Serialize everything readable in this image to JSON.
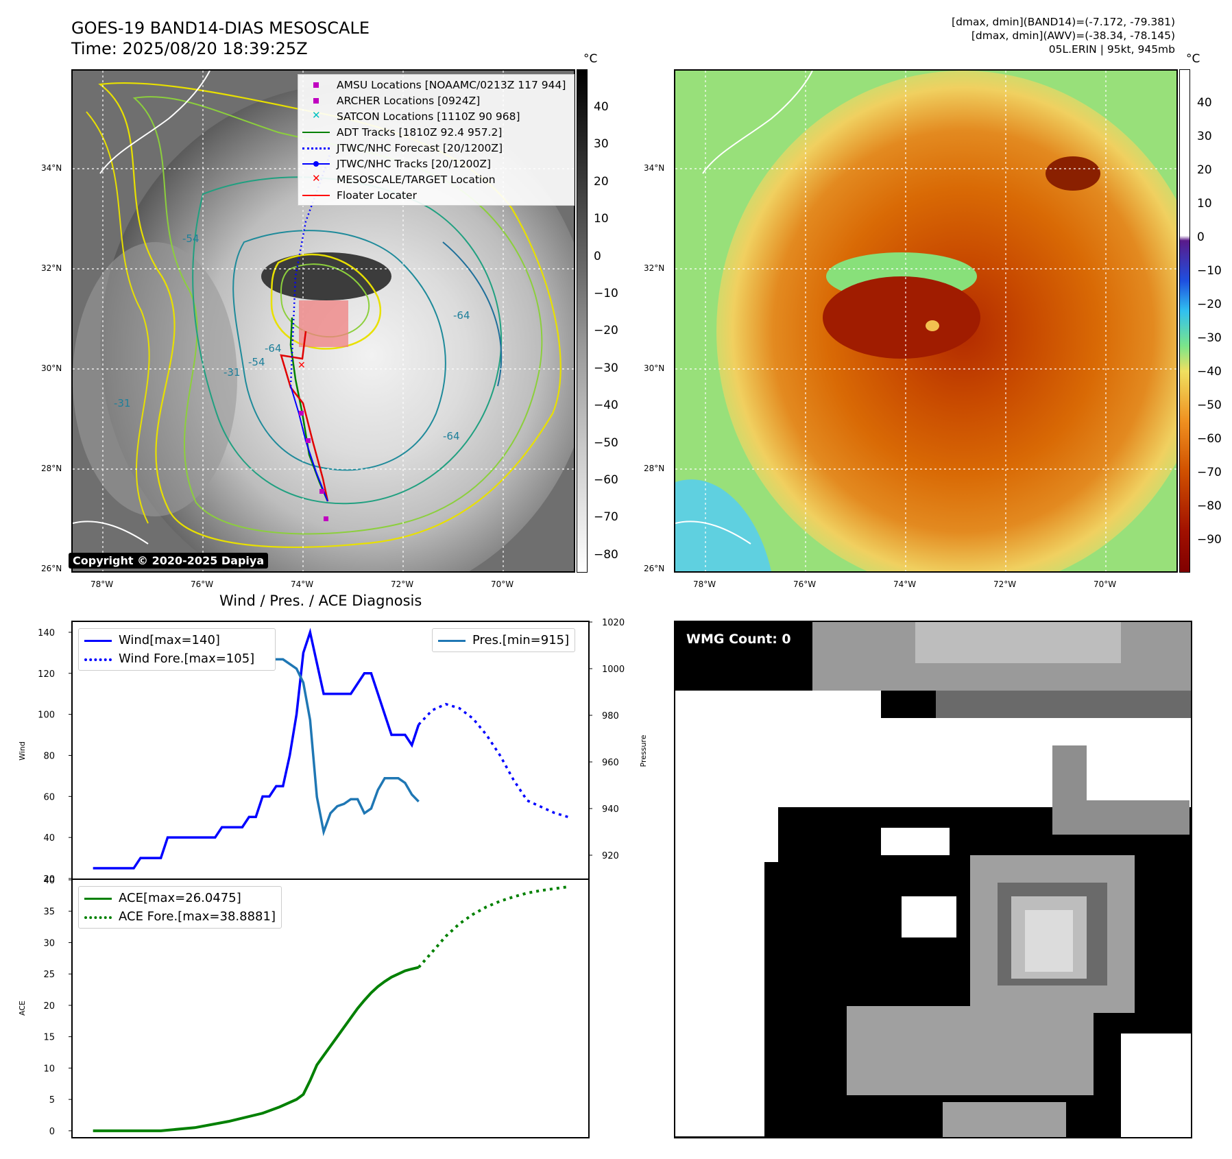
{
  "header": {
    "title_line1": "GOES-19 BAND14-DIAS MESOSCALE",
    "title_line2": "Time: 2025/08/20 18:39:25Z",
    "stats_line1": "[dmax, dmin](BAND14)=(-7.172, -79.381)",
    "stats_line2": "[dmax, dmin](AWV)=(-38.34, -78.145)",
    "stats_line3": "05L.ERIN | 95kt, 945mb"
  },
  "map_axes": {
    "lon_labels": [
      "78°W",
      "76°W",
      "74°W",
      "72°W",
      "70°W"
    ],
    "lat_labels": [
      "34°N",
      "32°N",
      "30°N",
      "28°N",
      "26°N"
    ]
  },
  "colorbar_left": {
    "unit": "°C",
    "ticks": [
      "40",
      "30",
      "20",
      "10",
      "0",
      "−10",
      "−20",
      "−30",
      "−40",
      "−50",
      "−60",
      "−70",
      "−80"
    ]
  },
  "colorbar_right": {
    "unit": "°C",
    "ticks": [
      "40",
      "30",
      "20",
      "10",
      "0",
      "−10",
      "−20",
      "−30",
      "−40",
      "−50",
      "−60",
      "−70",
      "−80",
      "−90"
    ]
  },
  "contour_labels": [
    "-64",
    "-54",
    "-31",
    "-64",
    "-64",
    "-54",
    "-31"
  ],
  "legend": [
    {
      "label": "AMSU Locations [NOAAMC/0213Z 117 944]",
      "symbol": "square",
      "color": "#c000c0"
    },
    {
      "label": "ARCHER Locations [0924Z]",
      "symbol": "square",
      "color": "#c000c0"
    },
    {
      "label": "SATCON Locations [1110Z 90 968]",
      "symbol": "x",
      "color": "#00c0c0"
    },
    {
      "label": "ADT Tracks [1810Z 92.4 957.2]",
      "symbol": "line",
      "color": "#008000"
    },
    {
      "label": "JTWC/NHC Forecast [20/1200Z]",
      "symbol": "dotted",
      "color": "#0000ff"
    },
    {
      "label": "JTWC/NHC Tracks [20/1200Z]",
      "symbol": "line-dot",
      "color": "#0000ff"
    },
    {
      "label": "MESOSCALE/TARGET Location",
      "symbol": "x",
      "color": "#ff0000"
    },
    {
      "label": "Floater Locater",
      "symbol": "line",
      "color": "#ff0000"
    }
  ],
  "copyright": "Copyright © 2020-2025 Dapiya",
  "wmg": {
    "label": "WMG Count: 0"
  },
  "chart_data": [
    {
      "type": "line",
      "title": "Wind / Pres. / ACE Diagnosis",
      "ylabel": "Wind",
      "ylabel_right": "Pressure",
      "ylim": [
        20,
        145
      ],
      "ylim_right": [
        910,
        1020
      ],
      "yticks": [
        20,
        40,
        60,
        80,
        100,
        120,
        140
      ],
      "yticks_right": [
        920,
        940,
        960,
        980,
        1000,
        1020
      ],
      "legend_left": [
        "Wind[max=140]",
        "Wind Fore.[max=105]"
      ],
      "legend_right": [
        "Pres.[min=915]"
      ],
      "series": [
        {
          "name": "Wind[max=140]",
          "color": "#0000ff",
          "style": "solid",
          "x": [
            0,
            2,
            4,
            6,
            8,
            10,
            12,
            14,
            16,
            18,
            20,
            22,
            24,
            26,
            28,
            30,
            32,
            34,
            36,
            38,
            40,
            42,
            44,
            46,
            48,
            50,
            52,
            54,
            56,
            58,
            60,
            62,
            64,
            66,
            68,
            70,
            72,
            74,
            76,
            78,
            80,
            82,
            84,
            86,
            88,
            90,
            92,
            94,
            96
          ],
          "values": [
            25,
            25,
            25,
            25,
            25,
            25,
            25,
            30,
            30,
            30,
            30,
            40,
            40,
            40,
            40,
            40,
            40,
            40,
            40,
            45,
            45,
            45,
            45,
            50,
            50,
            60,
            60,
            65,
            65,
            80,
            100,
            130,
            140,
            125,
            110,
            110,
            110,
            110,
            110,
            115,
            120,
            120,
            110,
            100,
            90,
            90,
            90,
            85,
            95
          ]
        },
        {
          "name": "Wind Fore.[max=105]",
          "color": "#0000ff",
          "style": "dotted",
          "x": [
            96,
            100,
            104,
            108,
            112,
            116,
            120,
            124,
            128,
            132,
            136,
            140
          ],
          "values": [
            95,
            102,
            105,
            103,
            98,
            90,
            80,
            68,
            58,
            55,
            52,
            50
          ]
        },
        {
          "name": "Pres.[min=915]",
          "color": "#1f77b4",
          "style": "solid",
          "axis": "right",
          "x": [
            0,
            4,
            8,
            12,
            16,
            20,
            24,
            28,
            32,
            36,
            40,
            44,
            48,
            52,
            56,
            60,
            62,
            64,
            66,
            68,
            70,
            72,
            74,
            76,
            78,
            80,
            82,
            84,
            86,
            88,
            90,
            92,
            94,
            96
          ],
          "values": [
            1015,
            1015,
            1015,
            1011,
            1009,
            1009,
            1008,
            1007,
            1008,
            1006,
            1006,
            1006,
            1004,
            1004,
            1004,
            1000,
            994,
            978,
            945,
            930,
            938,
            941,
            942,
            944,
            944,
            938,
            940,
            948,
            953,
            953,
            953,
            951,
            946,
            943
          ]
        }
      ]
    },
    {
      "type": "line",
      "ylabel": "ACE",
      "ylim": [
        -1,
        40
      ],
      "yticks": [
        0,
        5,
        10,
        15,
        20,
        25,
        30,
        35,
        40
      ],
      "legend": [
        "ACE[max=26.0475]",
        "ACE Fore.[max=38.8881]"
      ],
      "series": [
        {
          "name": "ACE[max=26.0475]",
          "color": "#008000",
          "style": "solid",
          "x": [
            0,
            10,
            20,
            30,
            40,
            50,
            55,
            60,
            62,
            64,
            66,
            68,
            70,
            72,
            74,
            76,
            78,
            80,
            82,
            84,
            86,
            88,
            90,
            92,
            94,
            96
          ],
          "values": [
            0,
            0,
            0,
            0.5,
            1.5,
            2.8,
            3.8,
            5.0,
            5.8,
            8.0,
            10.5,
            12.0,
            13.5,
            15.0,
            16.5,
            18.0,
            19.5,
            20.8,
            22.0,
            23.0,
            23.8,
            24.5,
            25.0,
            25.5,
            25.8,
            26.05
          ]
        },
        {
          "name": "ACE Fore.[max=38.8881]",
          "color": "#008000",
          "style": "dotted",
          "x": [
            96,
            100,
            104,
            108,
            112,
            116,
            120,
            124,
            128,
            132,
            136,
            140
          ],
          "values": [
            26.05,
            28.5,
            31.0,
            33.0,
            34.5,
            35.7,
            36.6,
            37.3,
            37.9,
            38.3,
            38.6,
            38.89
          ]
        }
      ]
    }
  ]
}
